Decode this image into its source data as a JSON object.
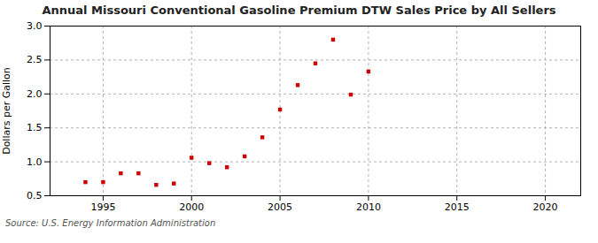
{
  "chart_data": {
    "type": "scatter",
    "title": "Annual Missouri Conventional Gasoline Premium DTW Sales Price by All Sellers",
    "ylabel": "Dollars per Gallon",
    "annotations": [
      "Source: U.S. Energy Information Administration"
    ],
    "x": [
      1994,
      1995,
      1996,
      1997,
      1998,
      1999,
      2000,
      2001,
      2002,
      2003,
      2004,
      2005,
      2006,
      2007,
      2008,
      2009,
      2010
    ],
    "values": [
      0.7,
      0.7,
      0.83,
      0.83,
      0.66,
      0.68,
      1.06,
      0.98,
      0.92,
      1.08,
      1.36,
      1.77,
      2.13,
      2.45,
      2.8,
      1.99,
      2.33
    ],
    "color": "#cc0000",
    "marker": "square",
    "xlim": [
      1992,
      2022
    ],
    "ylim": [
      0.5,
      3.0
    ],
    "xticks": [
      1995,
      2000,
      2005,
      2010,
      2015,
      2020
    ],
    "yticks": [
      0.5,
      {
        "value": 1.0,
        "label": "1.0"
      },
      1.5,
      {
        "value": 2.0,
        "label": "2.0"
      },
      2.5,
      {
        "value": 3.0,
        "label": "3.0"
      }
    ],
    "grid": true
  }
}
